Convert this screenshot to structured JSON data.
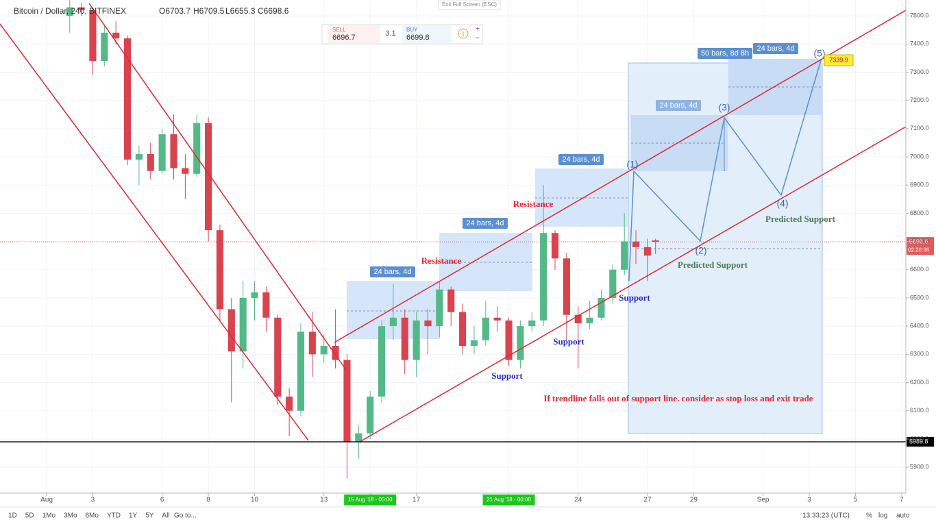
{
  "header": {
    "symbol": "Bitcoin / Dollar, 240, BITFINEX",
    "open": "O6703.7",
    "high": "H6709.5",
    "low": "L6655.3",
    "close": "C6698.6",
    "exit": "Exit Full Screen (ESC)"
  },
  "trade": {
    "sell_label": "SELL",
    "sell": "6696.7",
    "spread": "3.1",
    "buy_label": "BUY",
    "buy": "6699.8",
    "plus": "+",
    "minus": "−"
  },
  "toolbar": {
    "ranges": [
      "1D",
      "5D",
      "1Mo",
      "3Mo",
      "6Mo",
      "YTD",
      "1Y",
      "5Y",
      "All"
    ],
    "goto": "Go to...",
    "time": "13:33:23 (UTC)",
    "percent": "%",
    "log": "log",
    "auto": "auto"
  },
  "annotations": {
    "ranges": [
      "24 bars, 4d",
      "24 bars, 4d",
      "24 bars, 4d",
      "24 bars, 4d",
      "50 bars, 8d 8h",
      "24 bars, 4d"
    ],
    "resistance": [
      "Resistance",
      "Resistance"
    ],
    "support": [
      "Support",
      "Support",
      "Support"
    ],
    "predicted": [
      "Predicted Support",
      "Predicted Support"
    ],
    "waves": [
      "(1)",
      "(2)",
      "(3)",
      "(4)",
      "(5)"
    ],
    "note": "If trendline falls out of support line. consider as stop loss and exit trade"
  },
  "chart_data": {
    "type": "candlestick",
    "up_color": "#53b987",
    "down_color": "#d9434d",
    "grid": true,
    "ylim": [
      5808,
      7556
    ],
    "yticks": [
      {
        "value": 5900,
        "label": "5900.0"
      },
      {
        "value": 6000,
        "label": "6000.0"
      },
      {
        "value": 6100,
        "label": "6100.0"
      },
      {
        "value": 6200,
        "label": "6200.0"
      },
      {
        "value": 6300,
        "label": "6300.0"
      },
      {
        "value": 6400,
        "label": "6400.0"
      },
      {
        "value": 6500,
        "label": "6500.0"
      },
      {
        "value": 6600,
        "label": "6600.0"
      },
      {
        "value": 6700,
        "label": "6700.0"
      },
      {
        "value": 6800,
        "label": "6800.0"
      },
      {
        "value": 6900,
        "label": "6900.0"
      },
      {
        "value": 7000,
        "label": "7000.0"
      },
      {
        "value": 7100,
        "label": "7100.0"
      },
      {
        "value": 7200,
        "label": "7200.0"
      },
      {
        "value": 7300,
        "label": "7300.0"
      },
      {
        "value": 7400,
        "label": "7400.0"
      },
      {
        "value": 7500,
        "label": "7500.0"
      }
    ],
    "xlim": [
      -2.016,
      37.18
    ],
    "xticks": [
      {
        "value": 0,
        "label": "Aug"
      },
      {
        "value": 2,
        "label": "3"
      },
      {
        "value": 5,
        "label": "6"
      },
      {
        "value": 7,
        "label": "8"
      },
      {
        "value": 9,
        "label": "10"
      },
      {
        "value": 12,
        "label": "13"
      },
      {
        "value": 14,
        "label": "15 Aug '18 - 00:00"
      },
      {
        "value": 16,
        "label": "17"
      },
      {
        "value": 20,
        "label": "21 Aug '18 - 00:00"
      },
      {
        "value": 23,
        "label": "24"
      },
      {
        "value": 26,
        "label": "27"
      },
      {
        "value": 28,
        "label": "29"
      },
      {
        "value": 31,
        "label": "Sep"
      },
      {
        "value": 33,
        "label": "3"
      },
      {
        "value": 35,
        "label": "5"
      },
      {
        "value": 37,
        "label": "7"
      }
    ],
    "highlighted_xticks": [
      6,
      8
    ],
    "last_price": 6698.6,
    "countdown": "02:26:36",
    "support_level": 5989.8,
    "target": 7339.9,
    "candles": [
      [
        1.0,
        7500,
        7560,
        7440,
        7530
      ],
      [
        1.5,
        7530,
        7545,
        7500,
        7520
      ],
      [
        2.0,
        7520,
        7525,
        7290,
        7340
      ],
      [
        2.5,
        7340,
        7470,
        7320,
        7440
      ],
      [
        3.0,
        7440,
        7480,
        7400,
        7420
      ],
      [
        3.5,
        7420,
        7430,
        6970,
        6990
      ],
      [
        4.0,
        6990,
        7040,
        6900,
        7010
      ],
      [
        4.5,
        7010,
        7050,
        6920,
        6950
      ],
      [
        5.0,
        6950,
        7100,
        6940,
        7080
      ],
      [
        5.5,
        7080,
        7150,
        6920,
        6960
      ],
      [
        6.0,
        6960,
        7010,
        6850,
        6940
      ],
      [
        6.5,
        6940,
        7150,
        6930,
        7120
      ],
      [
        7.0,
        7120,
        7140,
        6700,
        6740
      ],
      [
        7.5,
        6740,
        6760,
        6420,
        6460
      ],
      [
        8.0,
        6460,
        6500,
        6130,
        6310
      ],
      [
        8.5,
        6310,
        6560,
        6250,
        6500
      ],
      [
        9.0,
        6500,
        6560,
        6420,
        6520
      ],
      [
        9.5,
        6520,
        6540,
        6380,
        6430
      ],
      [
        10.0,
        6430,
        6440,
        6120,
        6150
      ],
      [
        10.5,
        6150,
        6180,
        6010,
        6100
      ],
      [
        11.0,
        6100,
        6410,
        6080,
        6380
      ],
      [
        11.5,
        6380,
        6450,
        6220,
        6300
      ],
      [
        12.0,
        6300,
        6370,
        6270,
        6330
      ],
      [
        12.5,
        6330,
        6460,
        6250,
        6280
      ],
      [
        13.0,
        6280,
        6300,
        5860,
        5990
      ],
      [
        13.5,
        5990,
        6050,
        5930,
        6020
      ],
      [
        14.0,
        6020,
        6170,
        6000,
        6150
      ],
      [
        14.5,
        6150,
        6420,
        6130,
        6400
      ],
      [
        15.0,
        6400,
        6550,
        6350,
        6430
      ],
      [
        15.5,
        6430,
        6460,
        6230,
        6280
      ],
      [
        16.0,
        6280,
        6450,
        6220,
        6420
      ],
      [
        16.5,
        6420,
        6460,
        6300,
        6400
      ],
      [
        17.0,
        6400,
        6560,
        6360,
        6530
      ],
      [
        17.5,
        6530,
        6540,
        6400,
        6450
      ],
      [
        18.0,
        6450,
        6480,
        6300,
        6330
      ],
      [
        18.5,
        6330,
        6400,
        6300,
        6350
      ],
      [
        19.0,
        6350,
        6490,
        6330,
        6430
      ],
      [
        19.5,
        6430,
        6470,
        6380,
        6420
      ],
      [
        20.0,
        6420,
        6430,
        6260,
        6280
      ],
      [
        20.5,
        6280,
        6420,
        6250,
        6400
      ],
      [
        21.0,
        6400,
        6450,
        6380,
        6420
      ],
      [
        21.5,
        6420,
        6900,
        6400,
        6730
      ],
      [
        22.0,
        6730,
        6740,
        6600,
        6640
      ],
      [
        22.5,
        6640,
        6660,
        6350,
        6440
      ],
      [
        23.0,
        6440,
        6470,
        6250,
        6410
      ],
      [
        23.5,
        6410,
        6490,
        6390,
        6430
      ],
      [
        24.0,
        6430,
        6530,
        6420,
        6500
      ],
      [
        24.5,
        6500,
        6620,
        6480,
        6600
      ],
      [
        25.0,
        6600,
        6800,
        6580,
        6700
      ],
      [
        25.5,
        6700,
        6740,
        6620,
        6680
      ],
      [
        26.0,
        6680,
        6710,
        6560,
        6650
      ],
      [
        26.35,
        6703.7,
        6709.5,
        6655.3,
        6698.6
      ]
    ]
  }
}
